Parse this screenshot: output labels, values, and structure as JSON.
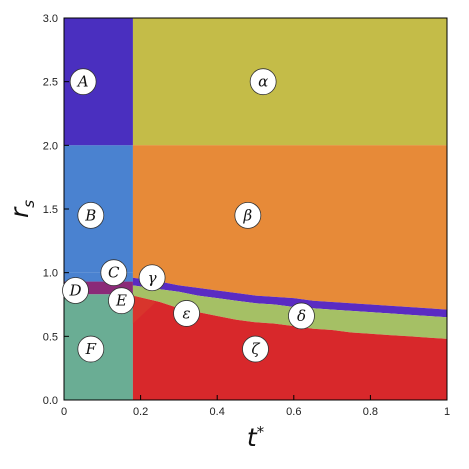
{
  "chart_data": {
    "type": "heatmap",
    "title": "",
    "xlabel": "t",
    "xlabel_superscript": "*",
    "ylabel": "r",
    "ylabel_subscript": "s",
    "xlim": [
      0,
      1
    ],
    "ylim": [
      0,
      3
    ],
    "xticks": [
      "0",
      "0.2",
      "0.4",
      "0.6",
      "0.8",
      "1"
    ],
    "yticks": [
      "0.0",
      "0.5",
      "1.0",
      "1.5",
      "2.0",
      "2.5",
      "3.0"
    ],
    "legend": "none",
    "grid": false,
    "region_boundary_t": 0.18,
    "boundary_curve": {
      "t": [
        0.18,
        0.25,
        0.3,
        0.35,
        0.4,
        0.45,
        0.5,
        0.55,
        0.6,
        0.65,
        0.7,
        0.75,
        0.8,
        0.85,
        0.9,
        0.95,
        1.0
      ],
      "upper": [
        0.96,
        0.93,
        0.9,
        0.88,
        0.86,
        0.84,
        0.82,
        0.81,
        0.8,
        0.78,
        0.77,
        0.76,
        0.75,
        0.74,
        0.73,
        0.72,
        0.71
      ],
      "band_bottom": [
        0.9,
        0.87,
        0.85,
        0.82,
        0.8,
        0.78,
        0.76,
        0.75,
        0.73,
        0.72,
        0.71,
        0.7,
        0.69,
        0.68,
        0.67,
        0.66,
        0.65
      ],
      "lower": [
        0.82,
        0.77,
        0.72,
        0.69,
        0.66,
        0.63,
        0.61,
        0.6,
        0.58,
        0.56,
        0.55,
        0.53,
        0.52,
        0.51,
        0.5,
        0.49,
        0.48
      ]
    },
    "regions": [
      {
        "label": "A",
        "color": "#4a2fbf",
        "label_t": 0.05,
        "label_r": 2.5
      },
      {
        "label": "α",
        "color": "#c4bc48",
        "label_t": 0.52,
        "label_r": 2.5
      },
      {
        "label": "B",
        "color": "#4a82d0",
        "label_t": 0.07,
        "label_r": 1.45
      },
      {
        "label": "β",
        "color": "#e78a38",
        "label_t": 0.48,
        "label_r": 1.45
      },
      {
        "label": "C",
        "color": "#4a82d0",
        "label_t": 0.13,
        "label_r": 1.0
      },
      {
        "label": "γ",
        "color": "#5a2bc2",
        "label_t": 0.23,
        "label_r": 0.96
      },
      {
        "label": "D",
        "color": "#8b2a78",
        "label_t": 0.03,
        "label_r": 0.86
      },
      {
        "label": "E",
        "color": "#d8352c",
        "label_t": 0.15,
        "label_r": 0.78
      },
      {
        "label": "ε",
        "color": "#a5c065",
        "label_t": 0.32,
        "label_r": 0.68
      },
      {
        "label": "δ",
        "color": "#a5c065",
        "label_t": 0.62,
        "label_r": 0.66
      },
      {
        "label": "F",
        "color": "#6aad94",
        "label_t": 0.07,
        "label_r": 0.4
      },
      {
        "label": "ζ",
        "color": "#d8282b",
        "label_t": 0.5,
        "label_r": 0.4
      }
    ]
  }
}
